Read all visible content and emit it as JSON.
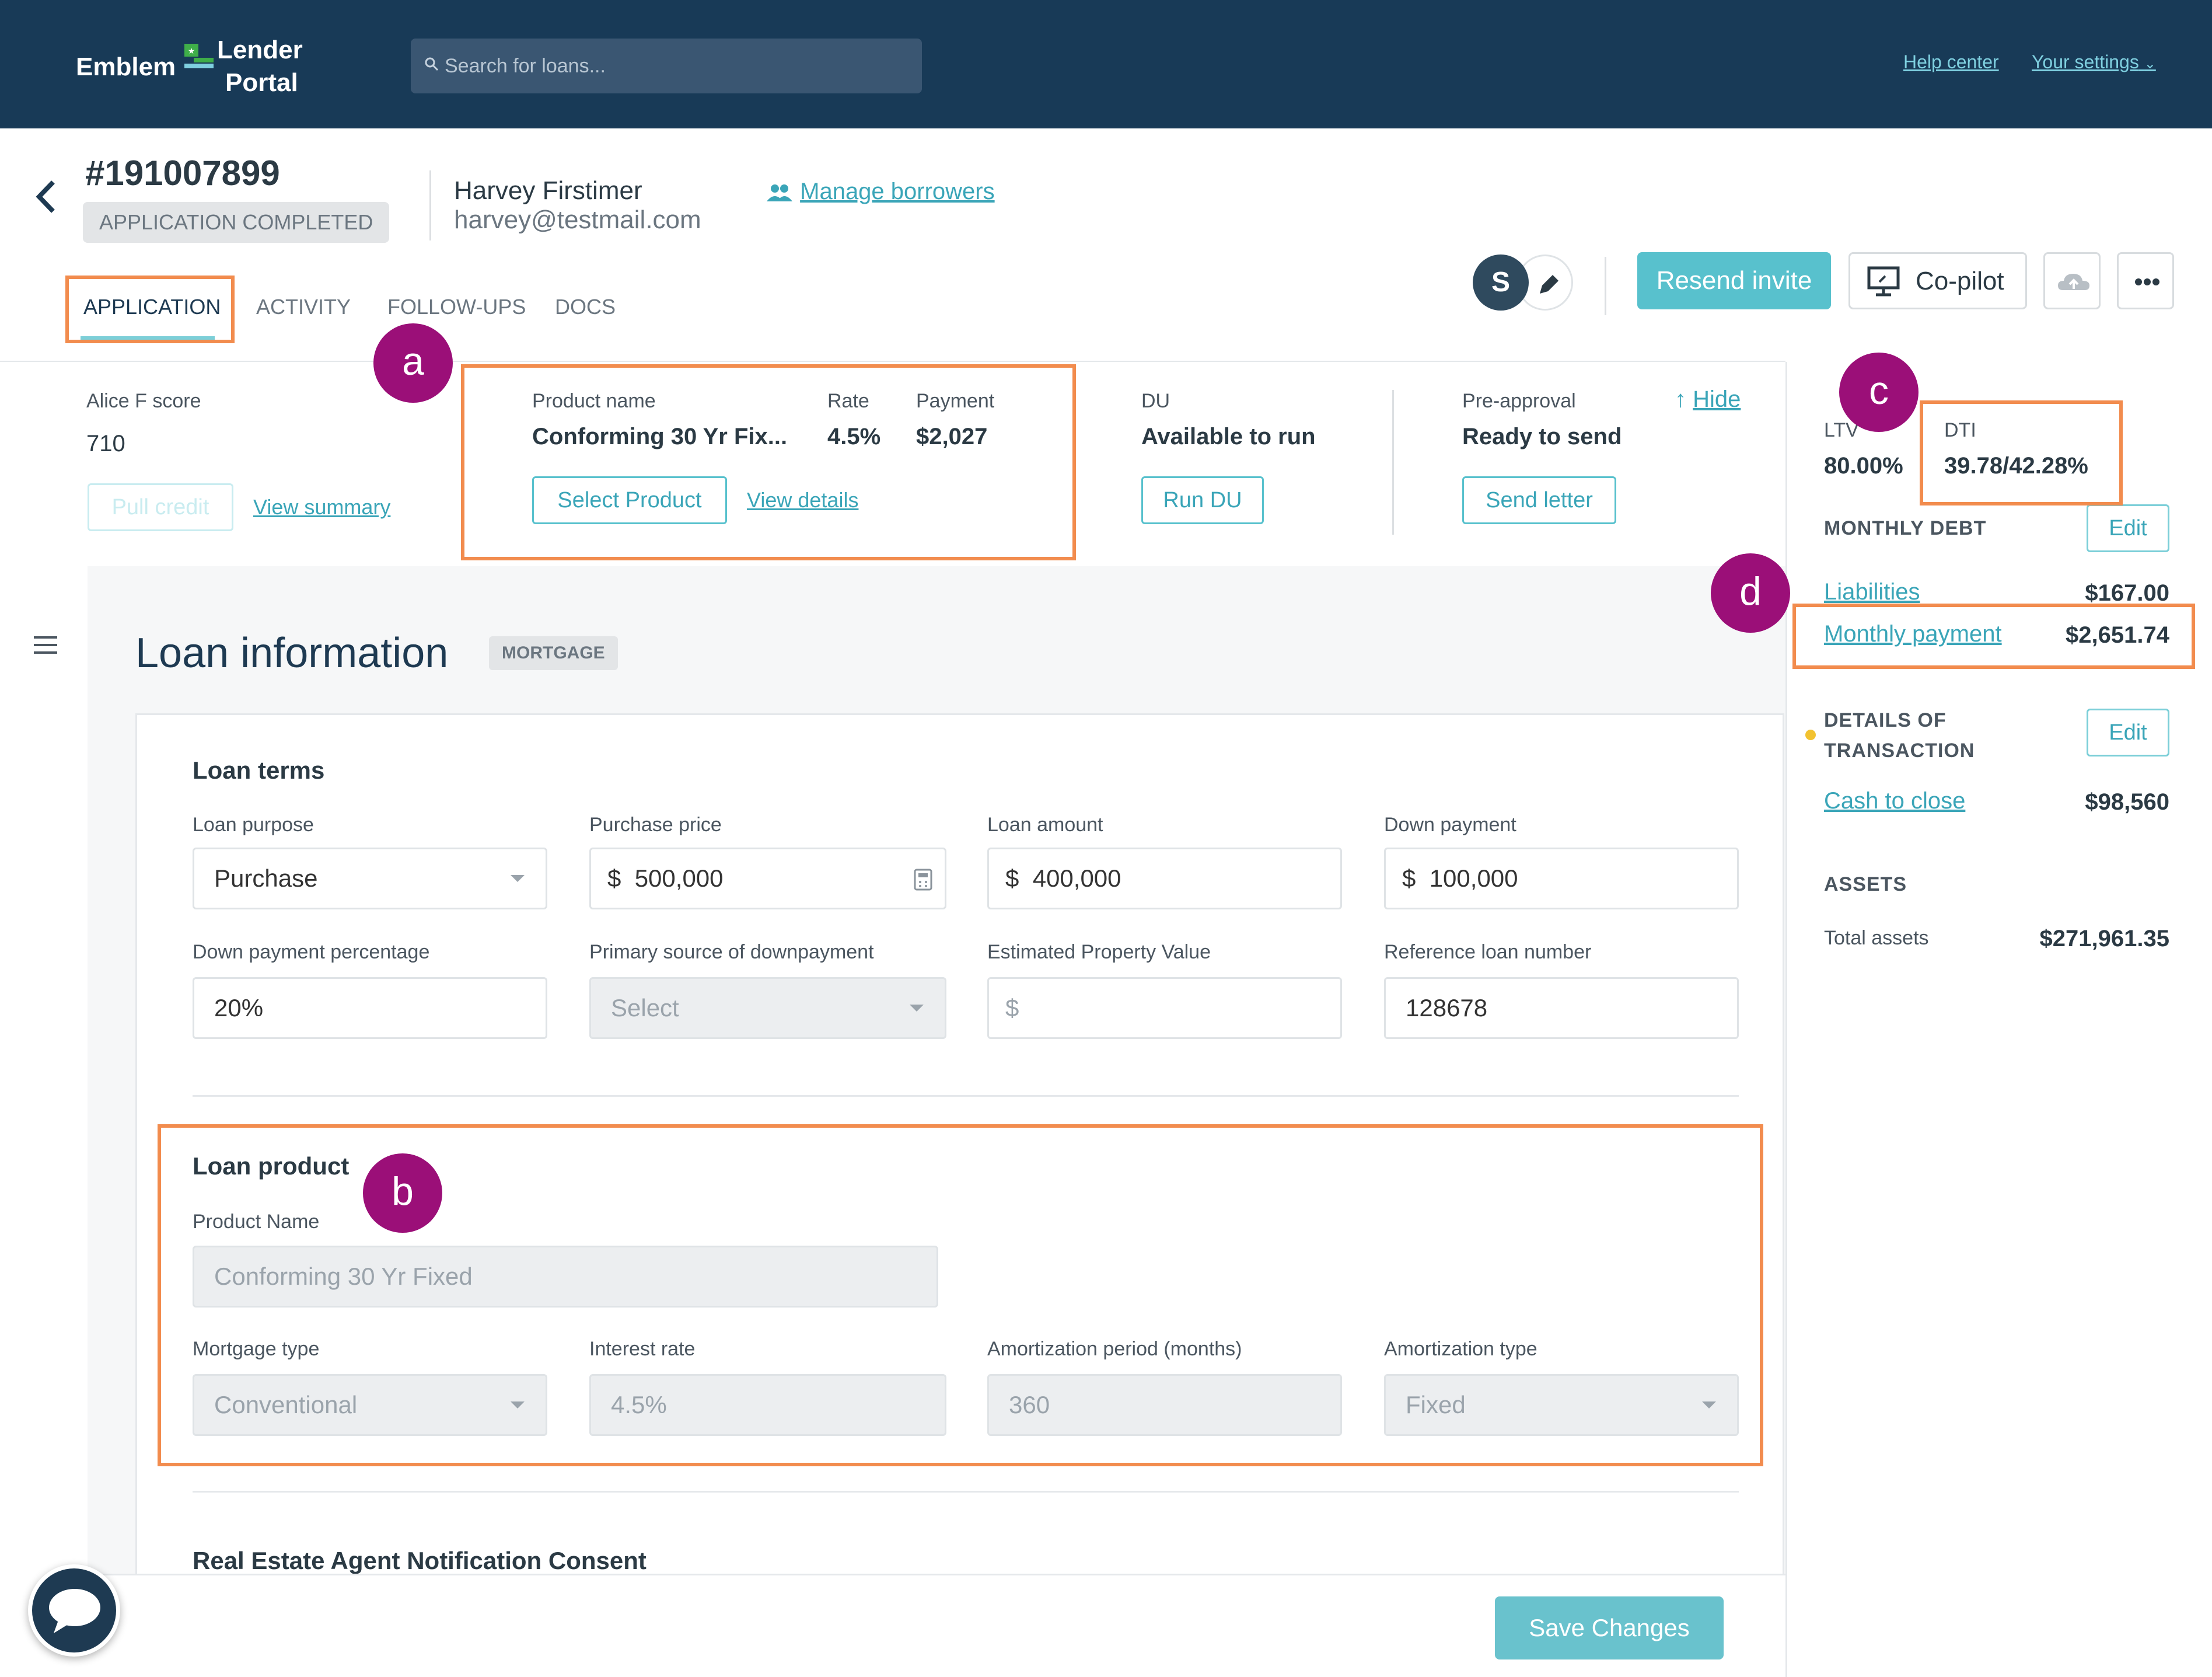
{
  "nav": {
    "brand_left": "Emblem",
    "brand_right_1": "Lender",
    "brand_right_2": "Portal",
    "search_placeholder": "Search for loans...",
    "help_center": "Help center",
    "your_settings": "Your settings"
  },
  "header": {
    "app_number": "#191007899",
    "status": "APPLICATION COMPLETED",
    "borrower_name": "Harvey Firstimer",
    "borrower_email": "harvey@testmail.com",
    "manage_borrowers": "Manage borrowers",
    "avatar_initial": "S",
    "resend_invite": "Resend invite",
    "copilot": "Co-pilot"
  },
  "tabs": [
    {
      "label": "APPLICATION"
    },
    {
      "label": "ACTIVITY"
    },
    {
      "label": "FOLLOW-UPS"
    },
    {
      "label": "DOCS"
    }
  ],
  "summary": {
    "credit_label": "Alice F score",
    "credit_value": "710",
    "pull_credit": "Pull credit",
    "view_summary": "View summary",
    "product_label": "Product name",
    "product_value": "Conforming 30 Yr Fix...",
    "rate_label": "Rate",
    "rate_value": "4.5%",
    "payment_label": "Payment",
    "payment_value": "$2,027",
    "select_product": "Select Product",
    "view_details": "View details",
    "du_label": "DU",
    "du_value": "Available to run",
    "run_du": "Run DU",
    "preapproval_label": "Pre-approval",
    "preapproval_value": "Ready to send",
    "send_letter": "Send letter",
    "hide": "Hide"
  },
  "sidebar": {
    "ltv_label": "LTV",
    "ltv_value": "80.00%",
    "dti_label": "DTI",
    "dti_value": "39.78/42.28%",
    "monthly_debt": "MONTHLY DEBT",
    "edit": "Edit",
    "liabilities_label": "Liabilities",
    "liabilities_value": "$167.00",
    "monthly_payment_label": "Monthly payment",
    "monthly_payment_value": "$2,651.74",
    "details_line1": "DETAILS OF",
    "details_line2": "TRANSACTION",
    "cash_to_close_label": "Cash to close",
    "cash_to_close_value": "$98,560",
    "assets": "ASSETS",
    "total_assets_label": "Total assets",
    "total_assets_value": "$271,961.35"
  },
  "main": {
    "title": "Loan information",
    "badge": "MORTGAGE",
    "loan_terms": {
      "title": "Loan terms",
      "loan_purpose_label": "Loan purpose",
      "loan_purpose_value": "Purchase",
      "purchase_price_label": "Purchase price",
      "purchase_price_value": "$  500,000",
      "loan_amount_label": "Loan amount",
      "loan_amount_value": "$  400,000",
      "down_payment_label": "Down payment",
      "down_payment_value": "$  100,000",
      "down_pct_label": "Down payment percentage",
      "down_pct_value": "20%",
      "primary_source_label": "Primary source of downpayment",
      "primary_source_placeholder": "Select",
      "est_value_label": "Estimated Property Value",
      "est_value_prefix": "$",
      "ref_loan_label": "Reference loan number",
      "ref_loan_value": "128678"
    },
    "loan_product": {
      "title": "Loan product",
      "product_name_label": "Product Name",
      "product_name_value": "Conforming 30 Yr Fixed",
      "mortgage_type_label": "Mortgage type",
      "mortgage_type_value": "Conventional",
      "interest_rate_label": "Interest rate",
      "interest_rate_value": "4.5%",
      "amort_period_label": "Amortization period (months)",
      "amort_period_value": "360",
      "amort_type_label": "Amortization type",
      "amort_type_value": "Fixed"
    },
    "consent_title": "Real Estate Agent Notification Consent",
    "save_changes": "Save Changes"
  },
  "annotations": {
    "a": "a",
    "b": "b",
    "c": "c",
    "d": "d"
  },
  "colors": {
    "nav": "#183a57",
    "accent": "#58c1cd",
    "annotation_box": "#f28c4e",
    "annotation_circle": "#9b0f78"
  },
  "icons": [
    "search-icon",
    "chevron-left-icon",
    "people-icon",
    "pencil-icon",
    "screen-share-icon",
    "cloud-upload-icon",
    "more-dots-icon",
    "hamburger-icon",
    "chat-bubble-icon",
    "calculator-icon",
    "arrow-up-icon"
  ]
}
